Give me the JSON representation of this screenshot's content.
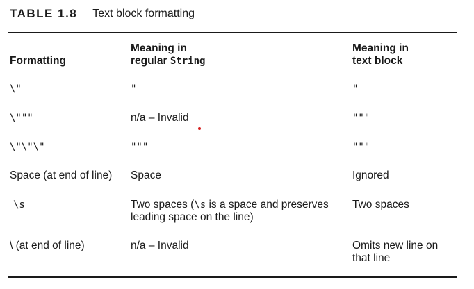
{
  "caption": {
    "label": "TABLE 1.8",
    "title": "Text block formatting"
  },
  "headers": {
    "col1": "Formatting",
    "col2_line1": "Meaning in",
    "col2_line2_prefix": "regular ",
    "col2_line2_code": "String",
    "col3_line1": "Meaning in",
    "col3_line2": "text block"
  },
  "rows": [
    {
      "formatting": "\\\"",
      "regular": "\"",
      "text_block": "\""
    },
    {
      "formatting": "\\\"\"\"",
      "regular": "n/a – Invalid",
      "text_block": "\"\"\""
    },
    {
      "formatting": "\\\"\\\"\\\"",
      "regular": "\"\"\"",
      "text_block": "\"\"\""
    },
    {
      "formatting": "Space (at end of line)",
      "regular": "Space",
      "text_block": "Ignored"
    },
    {
      "formatting": "\\s",
      "regular_prefix": "Two spaces (",
      "regular_code": "\\s",
      "regular_suffix": " is a space and preserves",
      "regular_line2": "leading space on the line)",
      "text_block": "Two spaces"
    },
    {
      "formatting": "\\ (at end of line)",
      "regular": "n/a – Invalid",
      "text_block_line1": "Omits new line on",
      "text_block_line2": "that line"
    }
  ],
  "colors": {
    "text": "#1a1a1a",
    "rule": "#1a1a1a",
    "annotation_dot": "#d62020"
  }
}
